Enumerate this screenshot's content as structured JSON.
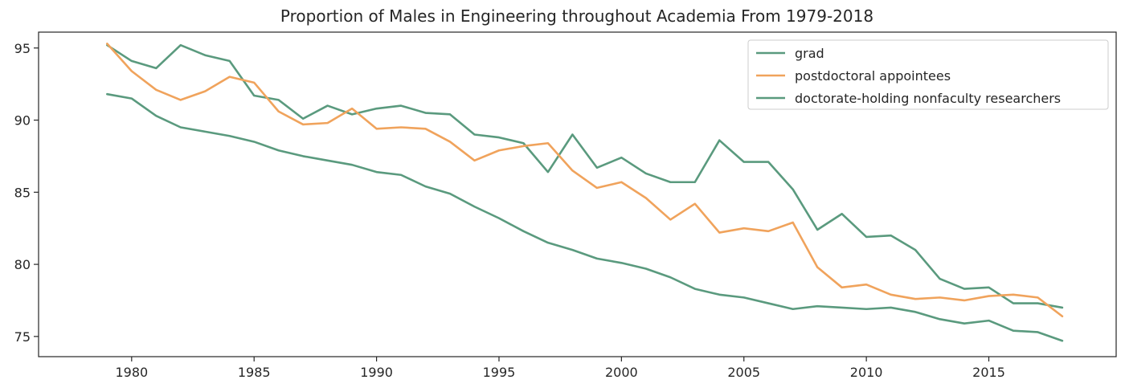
{
  "chart_data": {
    "type": "line",
    "title": "Proportion of Males in Engineering throughout Academia From 1979-2018",
    "xlabel": "",
    "ylabel": "",
    "xlim": [
      1976.2,
      2020.2
    ],
    "ylim": [
      73.6,
      96.1
    ],
    "grid": false,
    "legend_position": "top-right",
    "x_ticks": [
      1980,
      1985,
      1990,
      1995,
      2000,
      2005,
      2010,
      2015
    ],
    "y_ticks": [
      75,
      80,
      85,
      90,
      95
    ],
    "x": [
      1979,
      1980,
      1981,
      1982,
      1983,
      1984,
      1985,
      1986,
      1987,
      1988,
      1989,
      1990,
      1991,
      1992,
      1993,
      1994,
      1995,
      1996,
      1997,
      1998,
      1999,
      2000,
      2001,
      2002,
      2003,
      2004,
      2005,
      2006,
      2007,
      2008,
      2009,
      2010,
      2011,
      2012,
      2013,
      2014,
      2015,
      2016,
      2017,
      2018
    ],
    "series": [
      {
        "name": "grad",
        "color": "#5a9a7e",
        "values": [
          95.2,
          94.1,
          93.6,
          95.2,
          94.5,
          94.1,
          91.7,
          91.4,
          90.1,
          91.0,
          90.4,
          90.8,
          91.0,
          90.5,
          90.4,
          89.0,
          88.8,
          88.4,
          86.4,
          89.0,
          86.7,
          87.4,
          86.3,
          85.7,
          85.7,
          88.6,
          87.1,
          87.1,
          85.2,
          82.4,
          83.5,
          81.9,
          82.0,
          81.0,
          79.0,
          78.3,
          78.4,
          77.3,
          77.3,
          77.0
        ]
      },
      {
        "name": " postdoctoral appointees",
        "color": "#f0a35c",
        "values": [
          95.3,
          93.4,
          92.1,
          91.4,
          92.0,
          93.0,
          92.6,
          90.6,
          89.7,
          89.8,
          90.8,
          89.4,
          89.5,
          89.4,
          88.5,
          87.2,
          87.9,
          88.2,
          88.4,
          86.5,
          85.3,
          85.7,
          84.6,
          83.1,
          84.2,
          82.2,
          82.5,
          82.3,
          82.9,
          79.8,
          78.4,
          78.6,
          77.9,
          77.6,
          77.7,
          77.5,
          77.8,
          77.9,
          77.7,
          76.4
        ]
      },
      {
        "name": "doctorate-holding nonfaculty researchers",
        "color": "#5a9a7e",
        "values": [
          91.8,
          91.5,
          90.3,
          89.5,
          89.2,
          88.9,
          88.5,
          87.9,
          87.5,
          87.2,
          86.9,
          86.4,
          86.2,
          85.4,
          84.9,
          84.0,
          83.2,
          82.3,
          81.5,
          81.0,
          80.4,
          80.1,
          79.7,
          79.1,
          78.3,
          77.9,
          77.7,
          77.3,
          76.9,
          77.1,
          77.0,
          76.9,
          77.0,
          76.7,
          76.2,
          75.9,
          76.1,
          75.4,
          75.3,
          74.7
        ]
      }
    ]
  }
}
